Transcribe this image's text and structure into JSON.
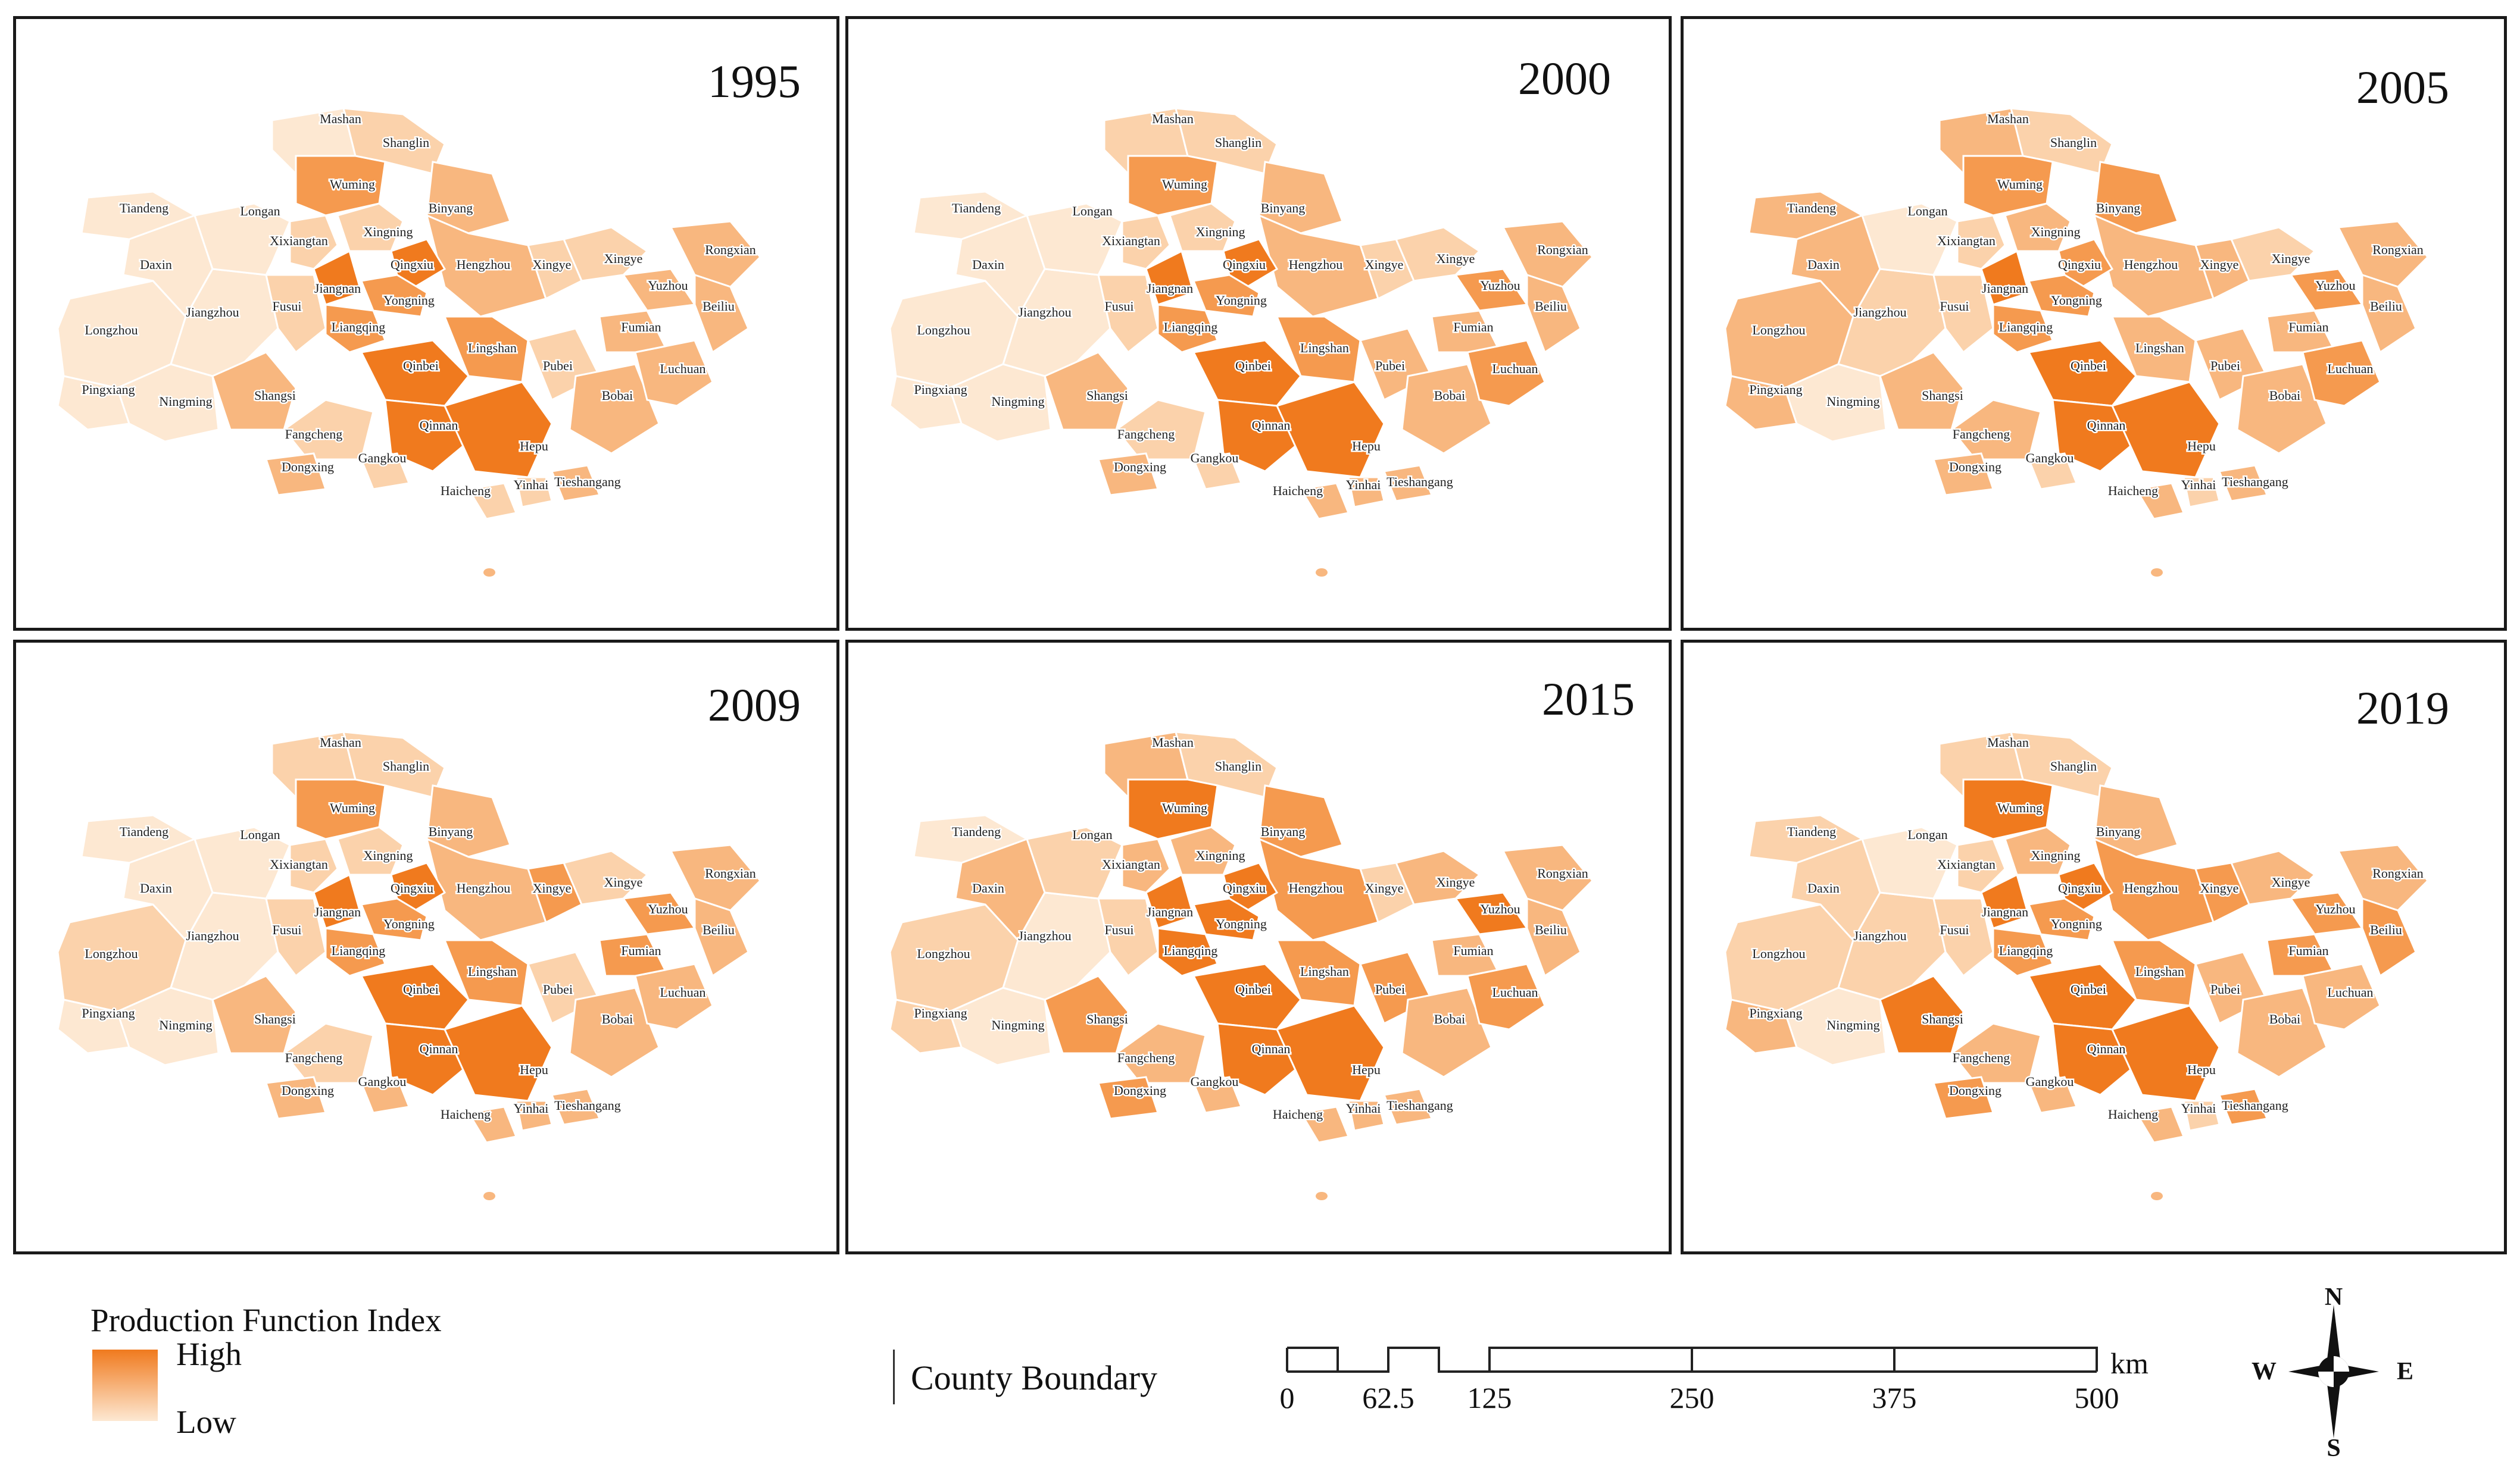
{
  "colors": {
    "high": "#f07a1e",
    "c4": "#f59a4f",
    "c3": "#f8b77f",
    "c2": "#fbd2ab",
    "low": "#fde8d2",
    "border": "#1a1a1a",
    "county_line": "#ffffff"
  },
  "panels": [
    {
      "year": "1995",
      "ranks": [
        1,
        1,
        1,
        1,
        1,
        1,
        2,
        1,
        1,
        2,
        4,
        3,
        3,
        2,
        2,
        5,
        5,
        4,
        4,
        4,
        5,
        5,
        5,
        3,
        2,
        3,
        2,
        2,
        2,
        3,
        2,
        3,
        3,
        3,
        3,
        2,
        3,
        3,
        2
      ]
    },
    {
      "year": "2000",
      "ranks": [
        1,
        1,
        1,
        1,
        1,
        1,
        2,
        1,
        2,
        2,
        4,
        3,
        3,
        2,
        2,
        5,
        5,
        4,
        4,
        4,
        5,
        5,
        5,
        3,
        2,
        3,
        2,
        3,
        3,
        3,
        3,
        3,
        4,
        3,
        4,
        2,
        3,
        3,
        2
      ]
    },
    {
      "year": "2005",
      "ranks": [
        3,
        3,
        3,
        3,
        1,
        2,
        2,
        1,
        3,
        2,
        4,
        4,
        3,
        2,
        3,
        4,
        5,
        4,
        4,
        3,
        5,
        5,
        5,
        3,
        3,
        3,
        2,
        3,
        2,
        3,
        3,
        3,
        4,
        3,
        4,
        2,
        3,
        3,
        3
      ]
    },
    {
      "year": "2009",
      "ranks": [
        2,
        1,
        1,
        1,
        1,
        1,
        2,
        1,
        2,
        2,
        4,
        3,
        3,
        2,
        2,
        5,
        5,
        4,
        4,
        4,
        5,
        5,
        5,
        3,
        2,
        3,
        3,
        3,
        3,
        3,
        2,
        3,
        3,
        4,
        4,
        2,
        3,
        3,
        4
      ]
    },
    {
      "year": "2015",
      "ranks": [
        2,
        3,
        1,
        2,
        1,
        1,
        2,
        2,
        3,
        2,
        5,
        4,
        4,
        3,
        3,
        5,
        5,
        5,
        5,
        4,
        5,
        5,
        5,
        4,
        3,
        4,
        3,
        3,
        3,
        3,
        4,
        3,
        4,
        3,
        5,
        3,
        3,
        3,
        2
      ]
    },
    {
      "year": "2019",
      "ranks": [
        2,
        2,
        2,
        3,
        1,
        2,
        2,
        1,
        2,
        2,
        5,
        3,
        4,
        2,
        3,
        5,
        5,
        4,
        4,
        4,
        5,
        5,
        5,
        5,
        3,
        4,
        3,
        3,
        2,
        4,
        3,
        3,
        3,
        4,
        4,
        3,
        3,
        4,
        4
      ]
    }
  ],
  "counties": [
    "Longzhou",
    "Daxin",
    "Tiandeng",
    "Pingxiang",
    "Ningming",
    "Jiangzhou",
    "Fusui",
    "Longan",
    "Mashan",
    "Shanglin",
    "Wuming",
    "Binyang",
    "Hengzhou",
    "Xixiangtan",
    "Xingning",
    "Qingxiu",
    "Jiangnan",
    "Yongning",
    "Liangqing",
    "Lingshan",
    "Qinbei",
    "Qinnan",
    "Hepu",
    "Shangsi",
    "Fangcheng",
    "Dongxing",
    "Gangkou",
    "Haicheng",
    "Yinhai",
    "Tieshangang",
    "Pubei",
    "Bobai",
    "Luchuan",
    "Fumian",
    "Yuzhou",
    "Xingye",
    "Rongxian",
    "Beiliu",
    "Xingye"
  ],
  "legend": {
    "title": "Production Function Index",
    "high": "High",
    "low": "Low",
    "boundary": "County Boundary"
  },
  "scalebar": {
    "ticks": [
      "0",
      "62.5",
      "125",
      "250",
      "375",
      "500"
    ],
    "unit": "km"
  },
  "compass": {
    "n": "N",
    "s": "S",
    "e": "E",
    "w": "W"
  }
}
